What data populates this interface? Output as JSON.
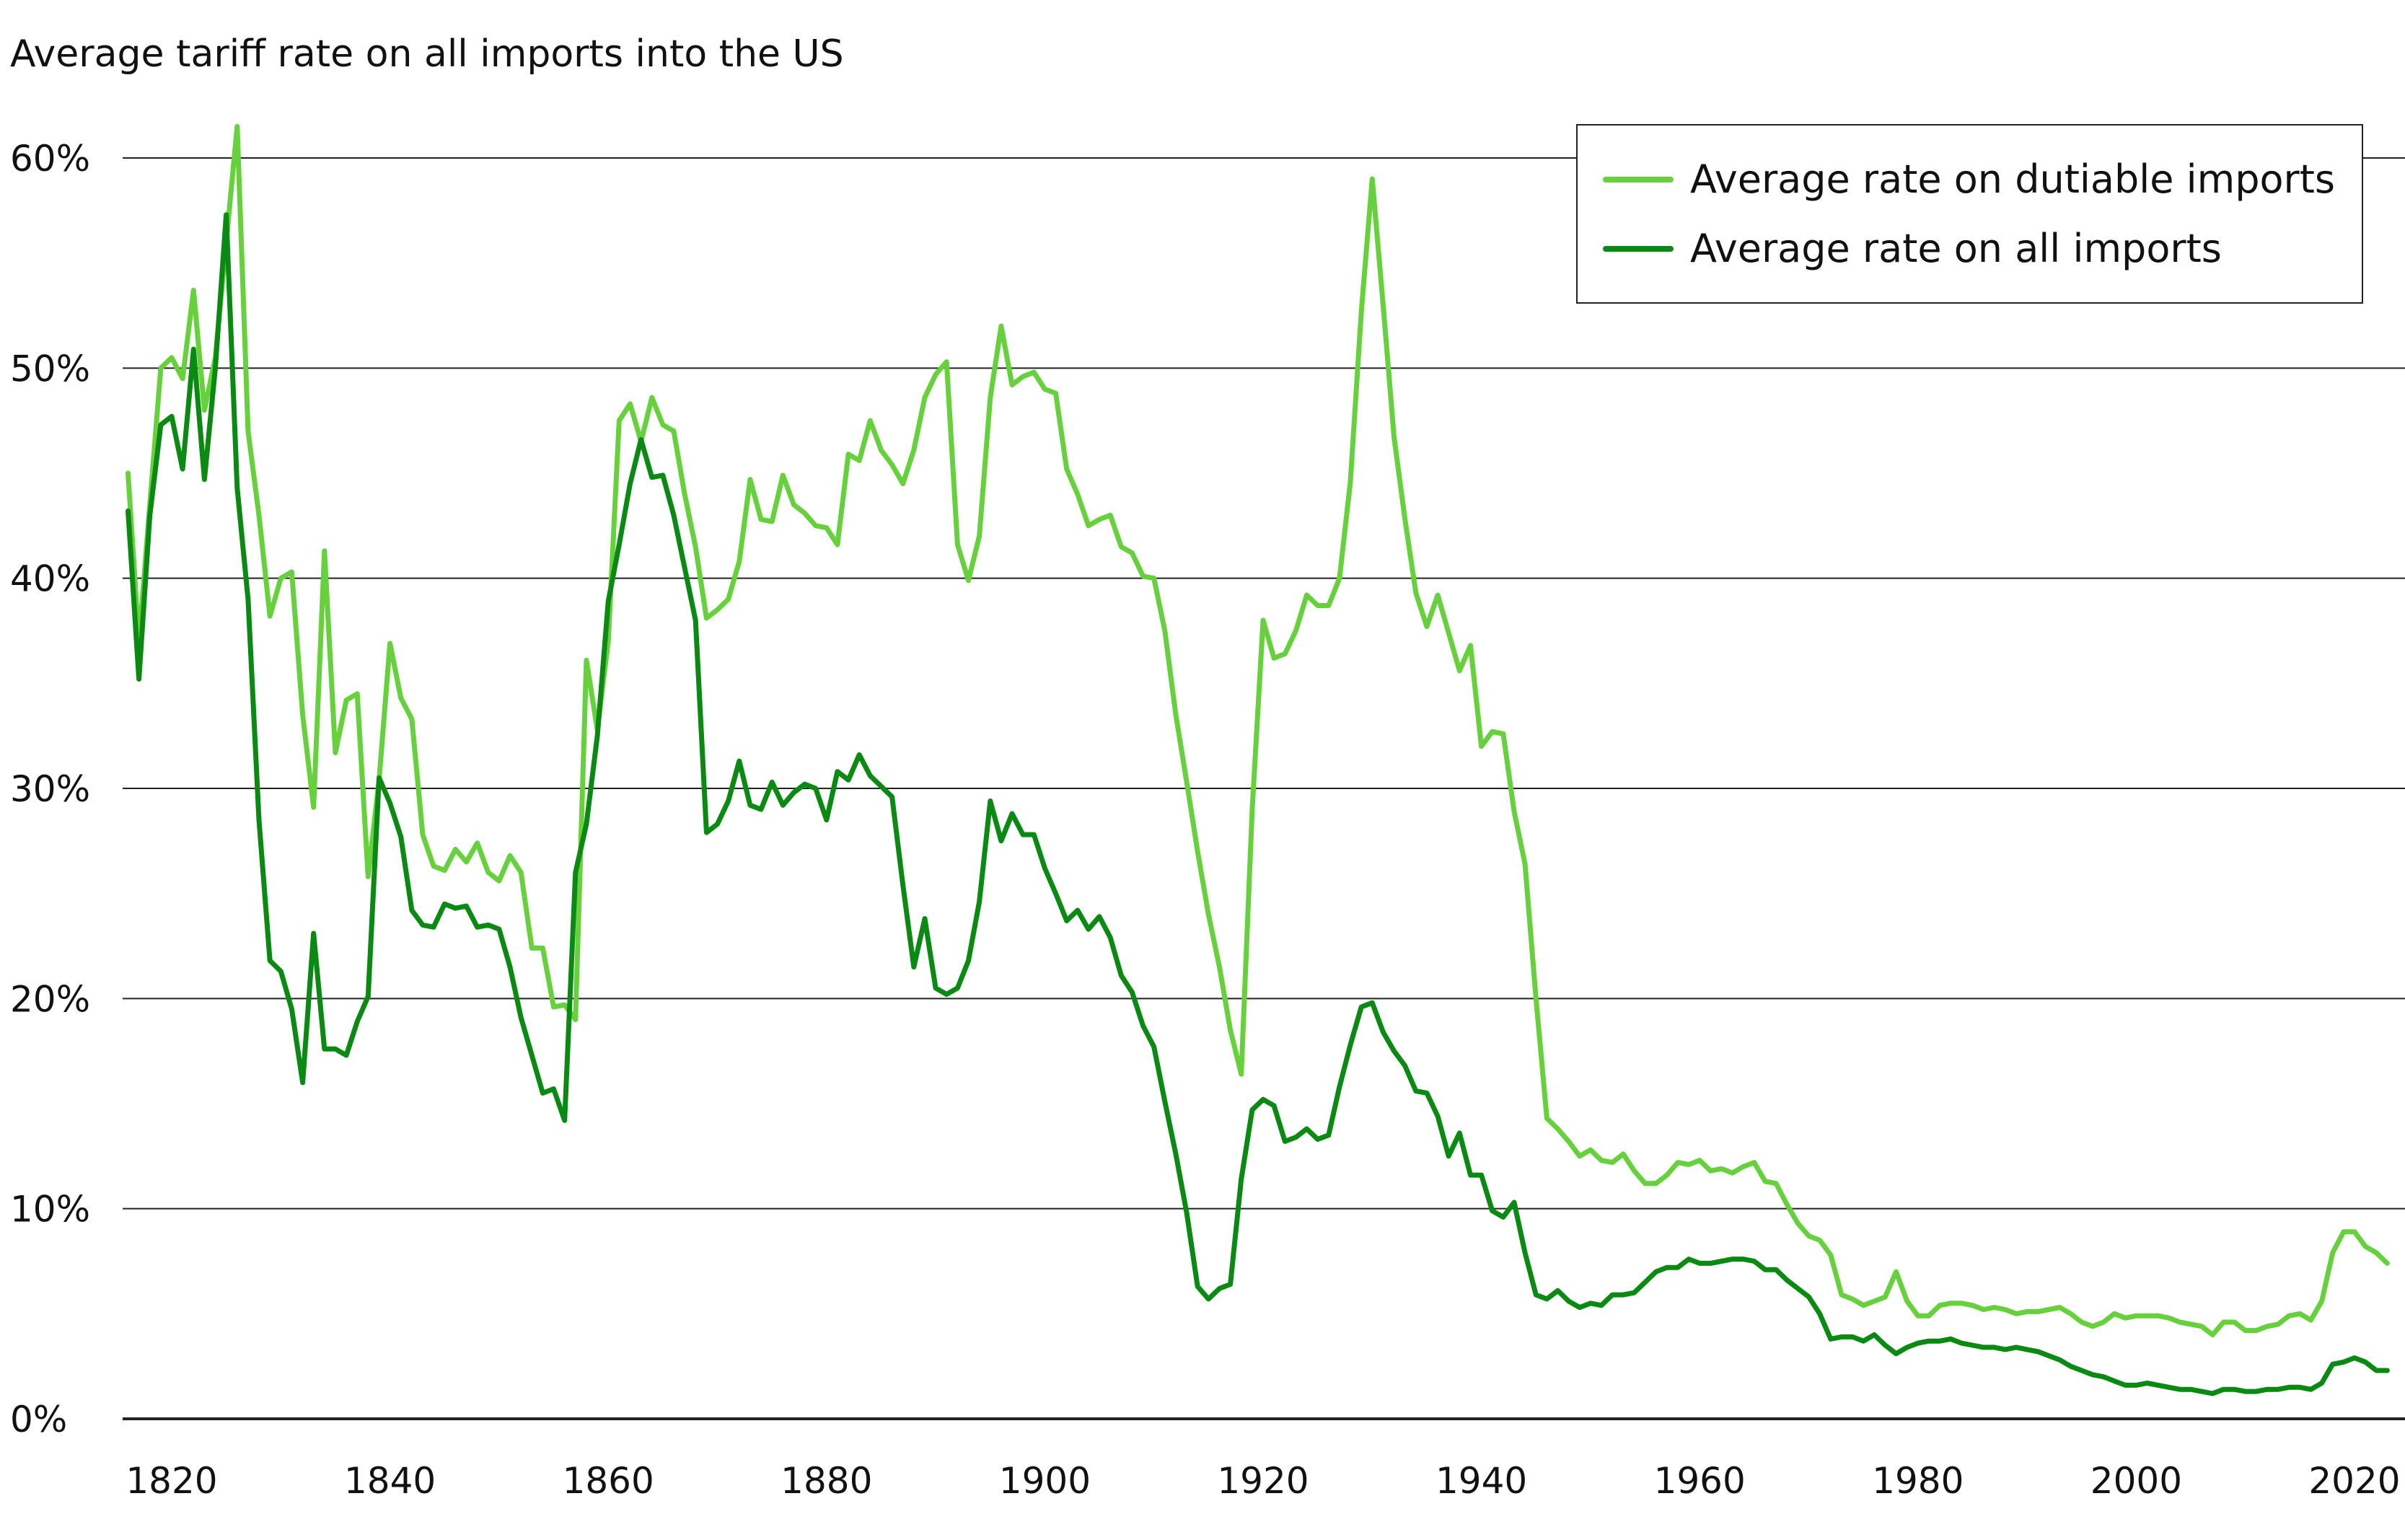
{
  "chart_data": {
    "type": "line",
    "title": "Average tariff rate on all imports into the US",
    "xlabel": "",
    "ylabel": "",
    "xlim": [
      1815,
      2024
    ],
    "ylim": [
      0,
      62
    ],
    "grid": true,
    "legend_position": "top-right",
    "x_ticks": [
      1820,
      1840,
      1860,
      1880,
      1900,
      1920,
      1940,
      1960,
      1980,
      2000,
      2020
    ],
    "x_tick_labels": [
      "1820",
      "1840",
      "1860",
      "1880",
      "1900",
      "1920",
      "1940",
      "1960",
      "1980",
      "2000",
      "2020"
    ],
    "y_ticks": [
      0,
      10,
      20,
      30,
      40,
      50,
      60
    ],
    "y_tick_labels": [
      "0%",
      "10%",
      "20%",
      "30%",
      "40%",
      "50%",
      "60%"
    ],
    "series": [
      {
        "name": "Average rate on dutiable imports",
        "color": "#66d13c",
        "start_year": 1816,
        "values": [
          45,
          37,
          43.5,
          50,
          50.5,
          49.5,
          53.7,
          48,
          50.5,
          56,
          61.5,
          47,
          43,
          38.2,
          40,
          40.3,
          33.5,
          29.1,
          41.3,
          31.7,
          34.2,
          34.5,
          25.8,
          30.4,
          36.9,
          34.3,
          33.3,
          27.8,
          26.3,
          26.1,
          27.1,
          26.5,
          27.4,
          26,
          25.6,
          26.8,
          26,
          22.4,
          22.4,
          19.6,
          19.7,
          19,
          36.1,
          32.8,
          37,
          47.5,
          48.3,
          46.5,
          48.6,
          47.3,
          47,
          44,
          41.5,
          38.1,
          38.5,
          39,
          40.8,
          44.7,
          42.8,
          42.7,
          44.9,
          43.5,
          43.1,
          42.5,
          42.4,
          41.6,
          45.9,
          45.6,
          47.5,
          46.1,
          45.4,
          44.5,
          46.1,
          48.6,
          49.7,
          50.3,
          41.6,
          39.9,
          42,
          48.6,
          52,
          49.2,
          49.6,
          49.8,
          49,
          48.8,
          45.2,
          44,
          42.5,
          42.8,
          43,
          41.5,
          41.2,
          40.1,
          40,
          37.5,
          33.5,
          30.3,
          27,
          24,
          21.5,
          18.5,
          16.4,
          29,
          38,
          36.2,
          36.4,
          37.5,
          39.2,
          38.7,
          38.7,
          40,
          44.6,
          52.7,
          59,
          53,
          46.7,
          42.8,
          39.3,
          37.7,
          39.2,
          37.4,
          35.6,
          36.8,
          32,
          32.7,
          32.6,
          28.9,
          26.4,
          20,
          14.3,
          13.8,
          13.2,
          12.5,
          12.8,
          12.3,
          12.2,
          12.6,
          11.8,
          11.2,
          11.2,
          11.6,
          12.2,
          12.1,
          12.3,
          11.8,
          11.9,
          11.7,
          12.0,
          12.2,
          11.3,
          11.2,
          10.2,
          9.3,
          8.7,
          8.5,
          7.8,
          5.9,
          5.7,
          5.4,
          5.6,
          5.8,
          7.0,
          5.6,
          4.9,
          4.9,
          5.4,
          5.5,
          5.5,
          5.4,
          5.2,
          5.3,
          5.2,
          5.0,
          5.1,
          5.1,
          5.2,
          5.3,
          5.0,
          4.6,
          4.4,
          4.6,
          5.0,
          4.8,
          4.9,
          4.9,
          4.9,
          4.8,
          4.6,
          4.5,
          4.4,
          4.0,
          4.6,
          4.6,
          4.2,
          4.2,
          4.4,
          4.5,
          4.9,
          5.0,
          4.7,
          5.6,
          7.9,
          8.9,
          8.9,
          8.2,
          7.9,
          7.4
        ]
      },
      {
        "name": "Average rate on all imports",
        "color": "#0a8a12",
        "start_year": 1816,
        "values": [
          43.2,
          35.2,
          43,
          47.3,
          47.7,
          45.2,
          50.9,
          44.7,
          50,
          57.3,
          44.3,
          39,
          28.5,
          21.8,
          21.3,
          19.5,
          16,
          23.1,
          17.6,
          17.6,
          17.3,
          18.9,
          20.1,
          30.5,
          29.3,
          27.7,
          24.2,
          23.5,
          23.4,
          24.5,
          24.3,
          24.4,
          23.4,
          23.5,
          23.3,
          21.5,
          19.1,
          17.3,
          15.5,
          15.7,
          14.2,
          26,
          28.3,
          32.5,
          38.9,
          41.6,
          44.5,
          46.6,
          44.8,
          44.9,
          43,
          40.5,
          38,
          27.9,
          28.3,
          29.4,
          31.3,
          29.2,
          29,
          30.3,
          29.2,
          29.8,
          30.2,
          30,
          28.5,
          30.8,
          30.4,
          31.6,
          30.6,
          30.1,
          29.6,
          25.4,
          21.5,
          23.8,
          20.5,
          20.2,
          20.5,
          21.8,
          24.6,
          29.4,
          27.5,
          28.8,
          27.8,
          27.8,
          26.2,
          25,
          23.7,
          24.2,
          23.3,
          23.9,
          22.9,
          21.1,
          20.3,
          18.7,
          17.7,
          15.1,
          12.6,
          9.8,
          6.3,
          5.7,
          6.2,
          6.4,
          11.4,
          14.7,
          15.2,
          14.9,
          13.2,
          13.4,
          13.8,
          13.3,
          13.5,
          15.8,
          17.8,
          19.6,
          19.8,
          18.4,
          17.5,
          16.8,
          15.6,
          15.5,
          14.4,
          12.5,
          13.6,
          11.6,
          11.6,
          9.9,
          9.6,
          10.3,
          7.9,
          5.9,
          5.7,
          6.1,
          5.6,
          5.3,
          5.5,
          5.4,
          5.9,
          5.9,
          6.0,
          6.5,
          7.0,
          7.2,
          7.2,
          7.6,
          7.4,
          7.4,
          7.5,
          7.6,
          7.6,
          7.5,
          7.1,
          7.1,
          6.6,
          6.2,
          5.8,
          5.0,
          3.8,
          3.9,
          3.9,
          3.7,
          4.0,
          3.5,
          3.1,
          3.4,
          3.6,
          3.7,
          3.7,
          3.8,
          3.6,
          3.5,
          3.4,
          3.4,
          3.3,
          3.4,
          3.3,
          3.2,
          3.0,
          2.8,
          2.5,
          2.3,
          2.1,
          2.0,
          1.8,
          1.6,
          1.6,
          1.7,
          1.6,
          1.5,
          1.4,
          1.4,
          1.3,
          1.2,
          1.4,
          1.4,
          1.3,
          1.3,
          1.4,
          1.4,
          1.5,
          1.5,
          1.4,
          1.7,
          2.6,
          2.7,
          2.9,
          2.7,
          2.3,
          2.3
        ]
      }
    ]
  }
}
